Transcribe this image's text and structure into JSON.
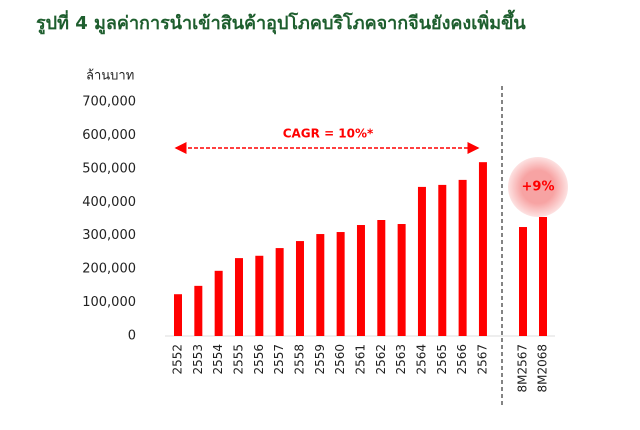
{
  "chart_data": {
    "type": "bar",
    "title": "รูปที่ 4 มูลค่าการนำเข้าสินค้าอุปโภคบริโภคจากจีนยังคงเพิ่มขึ้น",
    "y_label": "ล้านบาท",
    "categories": [
      "2552",
      "2553",
      "2554",
      "2555",
      "2556",
      "2557",
      "2558",
      "2559",
      "2560",
      "2561",
      "2562",
      "2563",
      "2564",
      "2565",
      "2566",
      "2567",
      "8M2567",
      "8M2068"
    ],
    "values": [
      125000,
      150000,
      195000,
      233000,
      240000,
      263000,
      284000,
      305000,
      311000,
      332000,
      347000,
      335000,
      446000,
      452000,
      467000,
      520000,
      326000,
      356000
    ],
    "color": "#ff0000",
    "ylim": [
      0,
      700000
    ],
    "yticks": [
      0,
      {
        "value": 100000,
        "label": "100,000"
      },
      {
        "value": 200000,
        "label": "200,000"
      },
      {
        "value": 300000,
        "label": "300,000"
      },
      {
        "value": 400000,
        "label": "400,000"
      },
      {
        "value": 500000,
        "label": "500,000"
      },
      {
        "value": 600000,
        "label": "600,000"
      },
      {
        "value": 700000,
        "label": "700,000"
      }
    ],
    "annotations": [
      "CAGR = 10%*",
      "+9%"
    ]
  }
}
